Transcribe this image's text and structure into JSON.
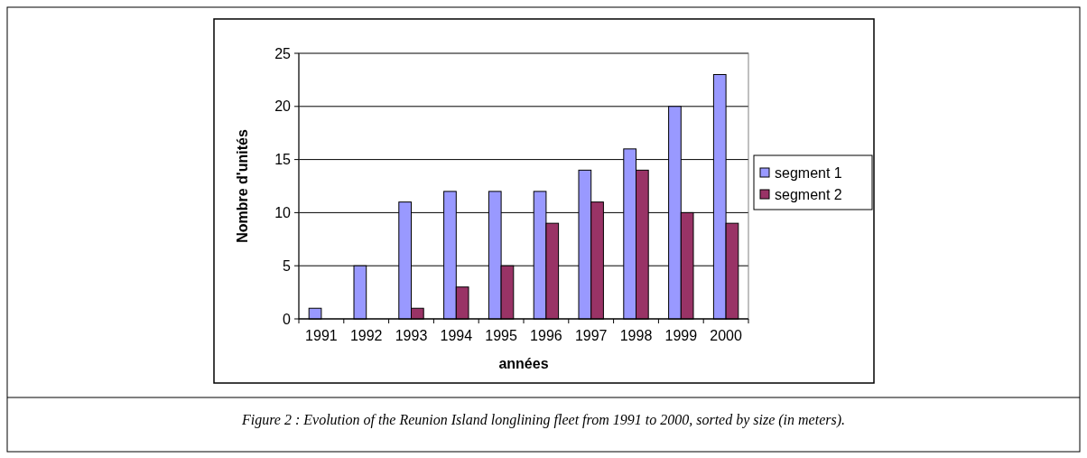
{
  "chart_data": {
    "type": "bar",
    "xlabel": "années",
    "ylabel": "Nombre d'unités",
    "categories": [
      "1991",
      "1992",
      "1993",
      "1994",
      "1995",
      "1996",
      "1997",
      "1998",
      "1999",
      "2000"
    ],
    "series": [
      {
        "name": "segment 1",
        "color": "#9999ff",
        "values": [
          1,
          5,
          11,
          12,
          12,
          12,
          14,
          16,
          20,
          23
        ]
      },
      {
        "name": "segment 2",
        "color": "#993366",
        "values": [
          0,
          0,
          1,
          3,
          5,
          9,
          11,
          14,
          10,
          9
        ]
      }
    ],
    "ylim": [
      0,
      25
    ],
    "yticks": [
      0,
      5,
      10,
      15,
      20,
      25
    ],
    "grid": "y",
    "legend": "right",
    "annotations": [
      "Figure 2 : Evolution of the Reunion Island longlining fleet from 1991 to 2000, sorted by size (in meters)."
    ]
  }
}
